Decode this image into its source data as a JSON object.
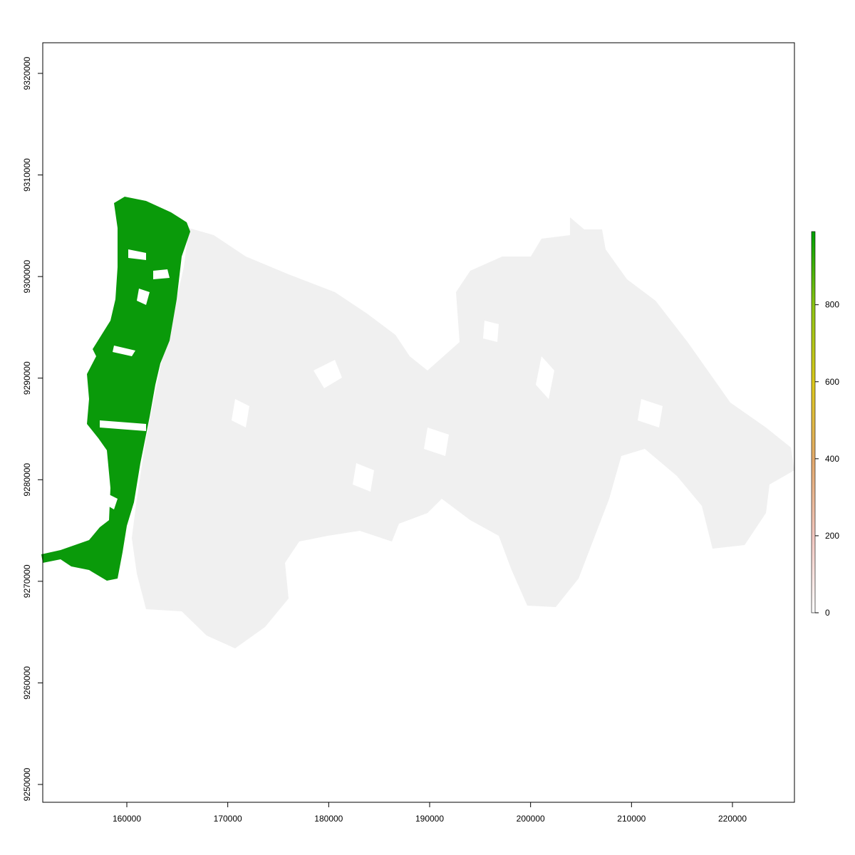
{
  "map": {
    "x_axis": {
      "ticks": [
        {
          "value": 160000,
          "label": "160000"
        },
        {
          "value": 170000,
          "label": "170000"
        },
        {
          "value": 180000,
          "label": "180000"
        },
        {
          "value": 190000,
          "label": "190000"
        },
        {
          "value": 200000,
          "label": "200000"
        },
        {
          "value": 210000,
          "label": "210000"
        },
        {
          "value": 220000,
          "label": "220000"
        }
      ]
    },
    "y_axis": {
      "ticks": [
        {
          "value": 9250000,
          "label": "9250000"
        },
        {
          "value": 9260000,
          "label": "9260000"
        },
        {
          "value": 9270000,
          "label": "9270000"
        },
        {
          "value": 9280000,
          "label": "9280000"
        },
        {
          "value": 9290000,
          "label": "9290000"
        },
        {
          "value": 9300000,
          "label": "9300000"
        },
        {
          "value": 9310000,
          "label": "9310000"
        },
        {
          "value": 9320000,
          "label": "9320000"
        }
      ]
    },
    "legend": {
      "position": "right",
      "ticks": [
        {
          "value": 0,
          "label": "0"
        },
        {
          "value": 200,
          "label": "200"
        },
        {
          "value": 400,
          "label": "400"
        },
        {
          "value": 600,
          "label": "600"
        },
        {
          "value": 800,
          "label": "800"
        }
      ],
      "value_range": [
        0,
        990
      ],
      "color_stops": [
        "#ffffff",
        "#f2c7c0",
        "#e3a96c",
        "#dcc81c",
        "#8fc414",
        "#00a000"
      ]
    },
    "layers": {
      "highlight_color": "#0a9a0a",
      "background_color": "#f0f0f0"
    }
  }
}
